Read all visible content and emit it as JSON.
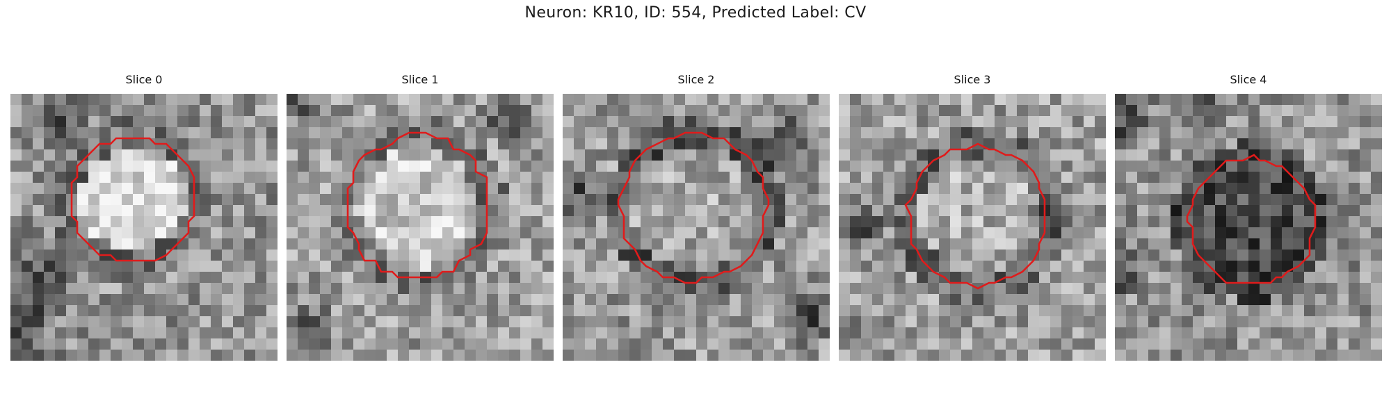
{
  "figure": {
    "title": "Neuron: KR10, ID: 554, Predicted Label: CV"
  },
  "panels": [
    {
      "title": "Slice 0",
      "center_value": 0.86,
      "ring_value": 0.42,
      "outer_value": 0.58
    },
    {
      "title": "Slice 1",
      "center_value": 0.8,
      "ring_value": 0.45,
      "outer_value": 0.62
    },
    {
      "title": "Slice 2",
      "center_value": 0.66,
      "ring_value": 0.32,
      "outer_value": 0.6
    },
    {
      "title": "Slice 3",
      "center_value": 0.68,
      "ring_value": 0.4,
      "outer_value": 0.62
    },
    {
      "title": "Slice 4",
      "center_value": 0.3,
      "ring_value": 0.28,
      "outer_value": 0.58
    }
  ],
  "colors": {
    "contour": "#e01b1b",
    "background": "#ffffff"
  }
}
